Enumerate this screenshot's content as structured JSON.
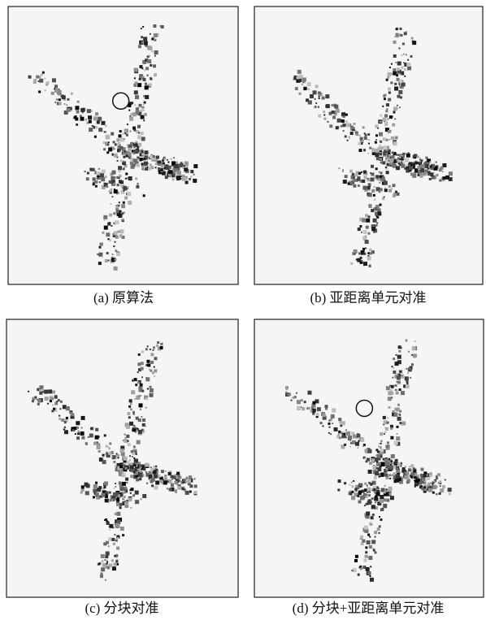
{
  "panels": [
    {
      "caption": "(a) 原算法"
    },
    {
      "caption": "(b) 亚距离单元对准"
    },
    {
      "caption": "(c) 分块对准"
    },
    {
      "caption": "(d) 分块+亚距离单元对准"
    }
  ]
}
